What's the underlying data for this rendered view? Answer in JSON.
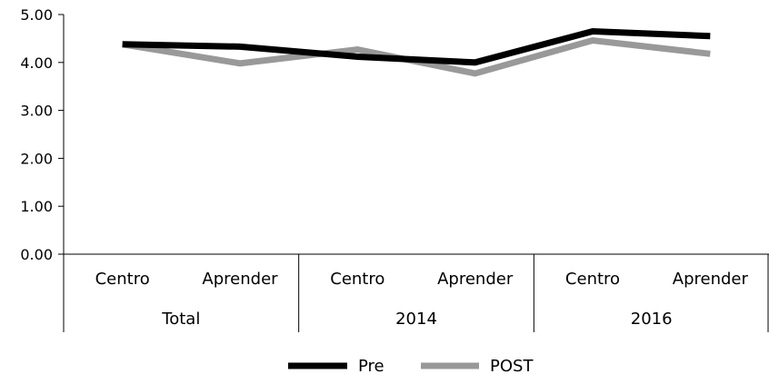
{
  "chart_data": {
    "type": "line",
    "ylim": [
      0,
      5
    ],
    "yticks": [
      "0.00",
      "1.00",
      "2.00",
      "3.00",
      "4.00",
      "5.00"
    ],
    "categories": [
      "Centro",
      "Aprender",
      "Centro",
      "Aprender",
      "Centro",
      "Aprender"
    ],
    "groups": [
      "Total",
      "2014",
      "2016"
    ],
    "series": [
      {
        "name": "Pre",
        "color": "#000000",
        "values": [
          4.38,
          4.33,
          4.12,
          4.0,
          4.65,
          4.55
        ]
      },
      {
        "name": "POST",
        "color": "#999999",
        "values": [
          4.38,
          3.98,
          4.27,
          3.77,
          4.46,
          4.18
        ]
      }
    ],
    "legend_position": "bottom"
  }
}
